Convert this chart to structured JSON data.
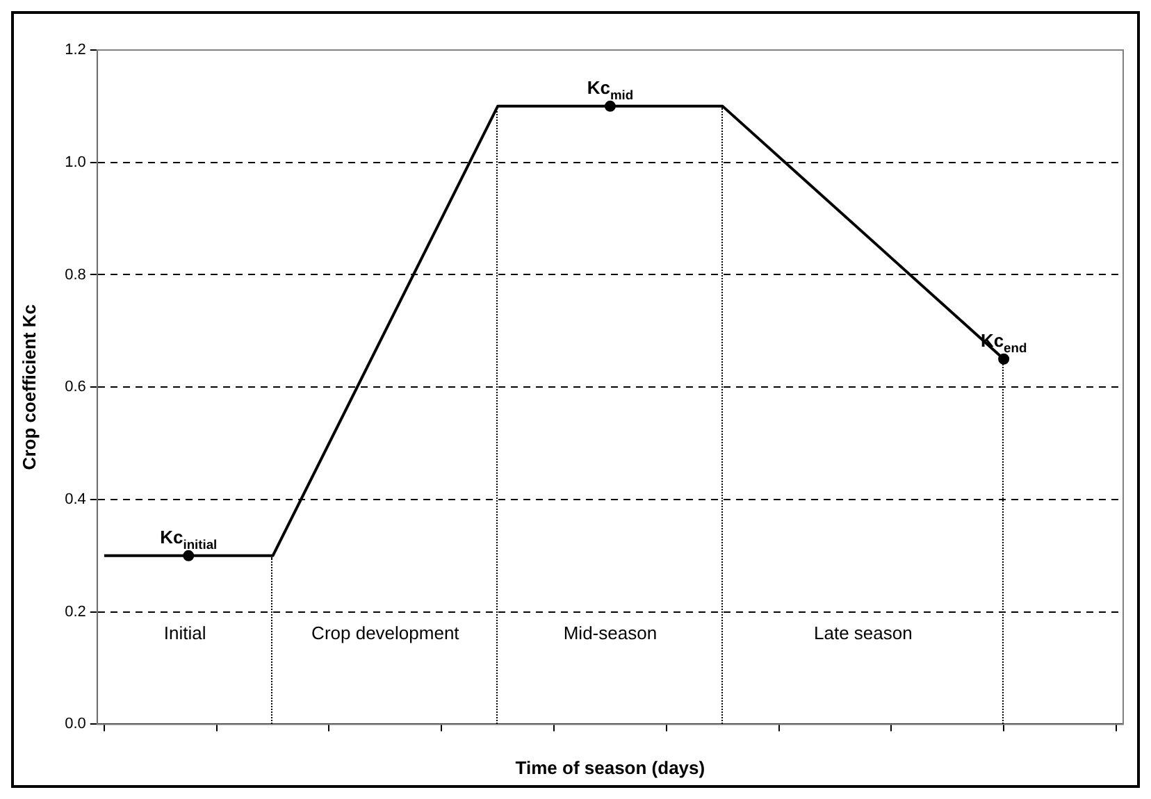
{
  "chart_data": {
    "type": "line",
    "xlabel": "Time of season (days)",
    "ylabel": "Crop coefficient Kc",
    "categories": [
      null,
      null,
      null,
      null,
      null,
      null,
      null,
      null,
      null,
      null,
      null,
      null,
      null,
      null,
      null,
      null,
      null,
      null,
      null,
      null,
      null,
      null,
      null,
      null,
      null,
      null,
      null,
      null,
      null,
      null,
      null,
      null,
      null,
      null,
      null,
      null,
      null,
      null,
      null,
      null,
      null,
      null,
      null,
      null,
      null,
      null,
      null,
      null,
      null,
      null,
      null,
      null,
      null,
      null,
      null,
      null,
      null,
      null,
      null,
      null,
      null,
      null,
      null,
      null,
      null,
      null,
      null,
      null,
      null,
      null,
      null,
      null,
      null
    ],
    "ylim": [
      0,
      1.2
    ],
    "yticks": [
      {
        "value": 0,
        "label": "0.0"
      },
      {
        "value": 0.2,
        "label": "0.2"
      },
      {
        "value": 0.4,
        "label": "0.4"
      },
      {
        "value": 0.6,
        "label": "0.6"
      },
      {
        "value": 0.8,
        "label": "0.8"
      },
      {
        "value": 1.0,
        "label": "1.0"
      },
      {
        "value": 1.2,
        "label": "1.2"
      }
    ],
    "grid": "y",
    "line_style": "solid",
    "series": [
      {
        "color": "#000000",
        "marker": "none",
        "values": [
          0.3,
          null,
          null,
          null,
          null,
          null,
          null,
          null,
          null,
          null,
          null,
          null,
          0.3,
          null,
          null,
          null,
          null,
          null,
          null,
          null,
          null,
          null,
          null,
          null,
          null,
          null,
          null,
          null,
          1.1,
          null,
          null,
          null,
          null,
          null,
          null,
          null,
          null,
          null,
          null,
          null,
          null,
          null,
          null,
          null,
          1.1,
          null,
          null,
          null,
          null,
          null,
          null,
          null,
          null,
          null,
          null,
          null,
          null,
          null,
          null,
          null,
          null,
          null,
          null,
          null,
          0.65,
          null,
          null,
          null,
          null,
          null,
          null,
          null,
          null
        ]
      },
      {
        "type": "scatter",
        "color": "#000000",
        "marker": "circle",
        "values": [
          null,
          null,
          null,
          null,
          null,
          null,
          0.3,
          null,
          null,
          null,
          null,
          null,
          null,
          null,
          null,
          null,
          null,
          null,
          null,
          null,
          null,
          null,
          null,
          null,
          null,
          null,
          null,
          null,
          null,
          null,
          null,
          null,
          null,
          null,
          null,
          null,
          1.1,
          null,
          null,
          null,
          null,
          null,
          null,
          null,
          null,
          null,
          null,
          null,
          null,
          null,
          null,
          null,
          null,
          null,
          null,
          null,
          null,
          null,
          null,
          null,
          null,
          null,
          null,
          null,
          0.65,
          null,
          null,
          null,
          null,
          null,
          null,
          null,
          null
        ],
        "value_labels": [
          null,
          null,
          null,
          null,
          null,
          null,
          "Kc$_{initial}$",
          null,
          null,
          null,
          null,
          null,
          null,
          null,
          null,
          null,
          null,
          null,
          null,
          null,
          null,
          null,
          null,
          null,
          null,
          null,
          null,
          null,
          null,
          null,
          null,
          null,
          null,
          null,
          null,
          null,
          "Kc$_{mid}$",
          null,
          null,
          null,
          null,
          null,
          null,
          null,
          null,
          null,
          null,
          null,
          null,
          null,
          null,
          null,
          null,
          null,
          null,
          null,
          null,
          null,
          null,
          null,
          null,
          null,
          null,
          null,
          "Kc$_{end}$",
          null,
          null,
          null,
          null,
          null,
          null,
          null,
          null
        ]
      }
    ],
    "annotations": [
      "Initial",
      "Crop development",
      "Mid-season",
      "Late season"
    ]
  }
}
